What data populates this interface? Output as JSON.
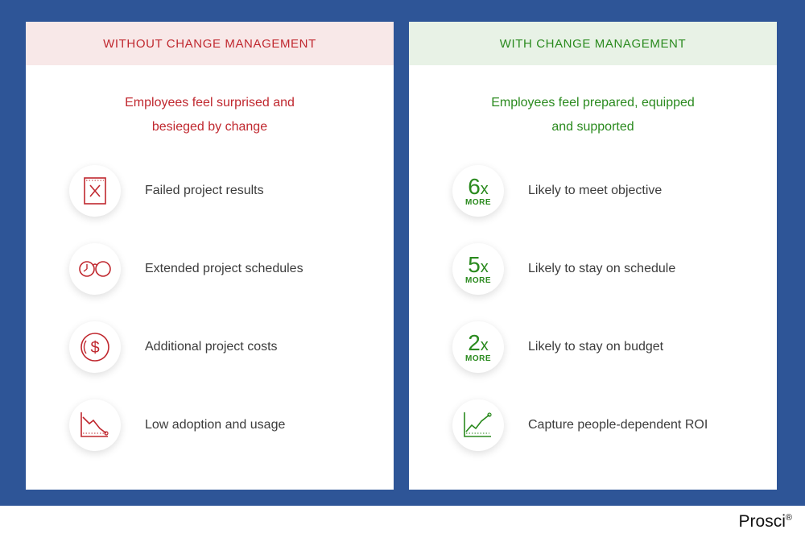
{
  "colors": {
    "background": "#2e5597",
    "negative": "#c0282f",
    "positive": "#2a8a1e"
  },
  "left": {
    "header": "WITHOUT CHANGE MANAGEMENT",
    "subtitle_line1": "Employees feel surprised and",
    "subtitle_line2": "besieged by change",
    "items": [
      {
        "icon": "failed-document-icon",
        "label": "Failed project results"
      },
      {
        "icon": "clock-extended-icon",
        "label": "Extended project schedules"
      },
      {
        "icon": "dollar-coin-icon",
        "label": "Additional project costs"
      },
      {
        "icon": "declining-chart-icon",
        "label": "Low adoption and usage"
      }
    ]
  },
  "right": {
    "header": "WITH CHANGE MANAGEMENT",
    "subtitle_line1": "Employees feel prepared, equipped",
    "subtitle_line2": "and supported",
    "items": [
      {
        "num": "6",
        "x": "x",
        "more": "MORE",
        "label": "Likely to meet objective"
      },
      {
        "num": "5",
        "x": "x",
        "more": "MORE",
        "label": "Likely to stay on schedule"
      },
      {
        "num": "2",
        "x": "x",
        "more": "MORE",
        "label": "Likely to stay on budget"
      },
      {
        "icon": "rising-chart-icon",
        "label": "Capture people-dependent ROI"
      }
    ]
  },
  "brand": {
    "name": "Prosci",
    "mark": "®"
  }
}
